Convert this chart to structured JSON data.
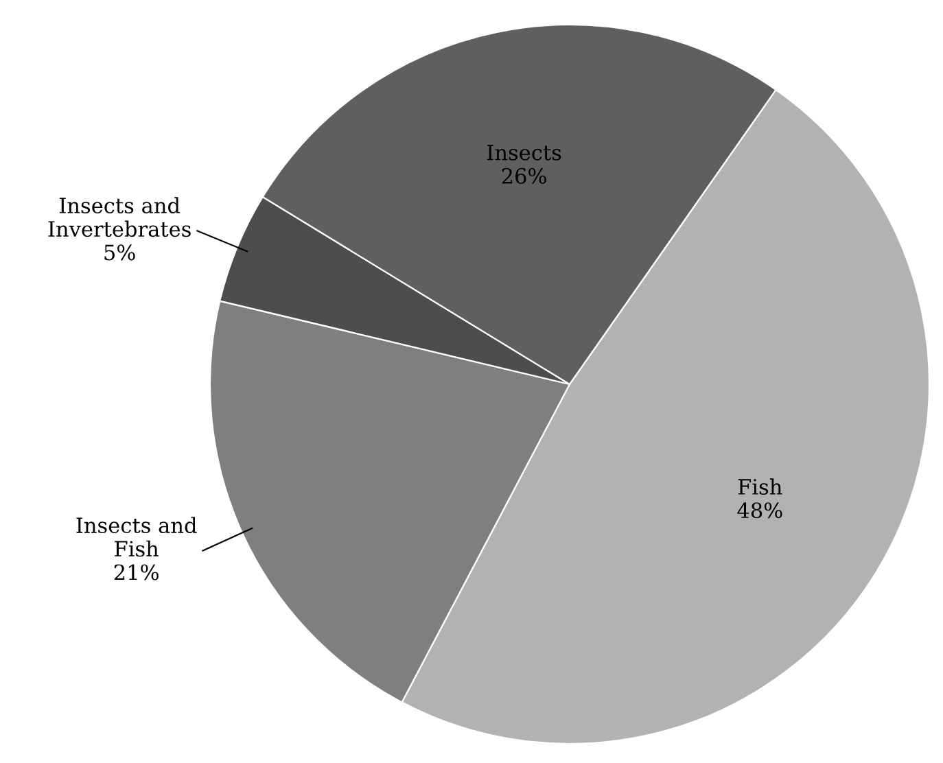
{
  "chart_data": {
    "type": "pie",
    "categories": [
      "Fish",
      "Insects and Fish",
      "Insects and Invertebrates",
      "Insects"
    ],
    "values": [
      48,
      21,
      5,
      26
    ],
    "colors": [
      "#b2b2b2",
      "#7f7f7f",
      "#4d4d4d",
      "#5f5f5f"
    ],
    "value_labels": [
      "48%",
      "21%",
      "5%",
      "26%"
    ],
    "legend": false
  }
}
